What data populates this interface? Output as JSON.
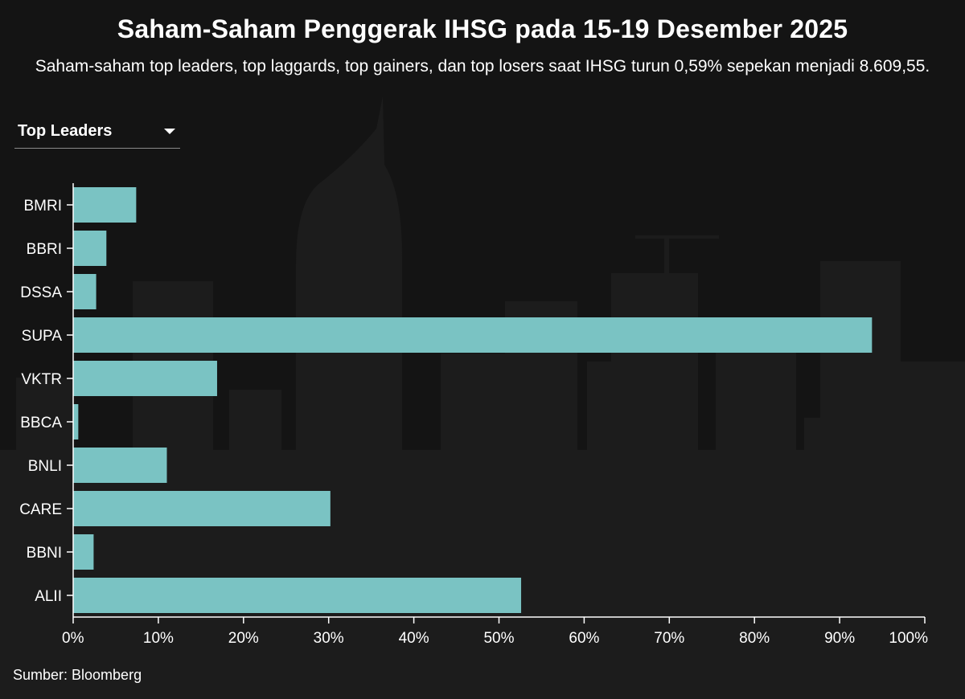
{
  "header": {
    "title": "Saham-Saham Penggerak IHSG pada 15-19 Desember 2025",
    "subtitle": "Saham-saham top leaders, top laggards, top gainers, dan top losers saat IHSG turun 0,59% sepekan menjadi 8.609,55."
  },
  "dropdown": {
    "selected": "Top Leaders",
    "icon": "caret-down-icon"
  },
  "source": "Sumber: Bloomberg",
  "colors": {
    "bar": "#7fcccc",
    "background": "#141414",
    "text": "#ffffff"
  },
  "chart_data": {
    "type": "bar",
    "orientation": "horizontal",
    "categories": [
      "BMRI",
      "BBRI",
      "DSSA",
      "SUPA",
      "VKTR",
      "BBCA",
      "BNLI",
      "CARE",
      "BBNI",
      "ALII"
    ],
    "values": [
      7.4,
      3.9,
      2.7,
      93.8,
      16.9,
      0.6,
      11.0,
      30.2,
      2.4,
      52.6
    ],
    "xlim": [
      0,
      100
    ],
    "xticks": [
      "0%",
      "10%",
      "20%",
      "30%",
      "40%",
      "50%",
      "60%",
      "70%",
      "80%",
      "90%",
      "100%"
    ],
    "grid": false
  }
}
